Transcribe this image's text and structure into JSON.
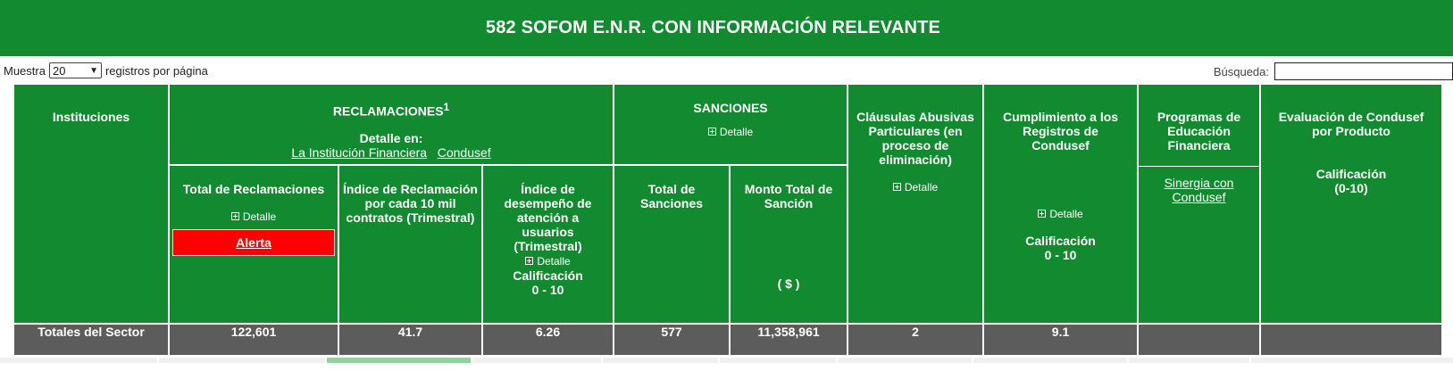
{
  "banner": {
    "title": "582 SOFOM E.N.R. CON INFORMACIÓN RELEVANTE"
  },
  "controls": {
    "show_label": "Muestra",
    "page_size": "20",
    "per_page_label": "registros por página",
    "search_label": "Búsqueda:",
    "search_value": ""
  },
  "colors": {
    "header_green": "#128a2f",
    "totals_gray": "#5c5c5c",
    "alert_red": "#ff0000"
  },
  "table": {
    "institutions_header": "Instituciones",
    "reclamaciones": {
      "title": "RECLAMACIONES",
      "footnote": "1",
      "detail_label": "Detalle en:",
      "link_institution": "La Institución Financiera",
      "link_condusef": "Condusef",
      "total_header": "Total de Reclamaciones",
      "total_detail": "Detalle",
      "alert_label": "Alerta",
      "indice_header": "Índice de Reclamación por cada 10 mil contratos (Trimestral)",
      "desempeno_header": "Índice de desempeño de atención a usuarios (Trimestral)",
      "desempeno_detail": "Detalle",
      "desempeno_calif": "Calificación",
      "desempeno_range": "0 - 10"
    },
    "sanciones": {
      "title": "SANCIONES",
      "detail": "Detalle",
      "total_header": "Total de Sanciones",
      "monto_header": "Monto Total de Sanción",
      "monto_unit": "( $ )"
    },
    "clausulas": {
      "header": "Cláusulas Abusivas Particulares (en proceso de eliminación)",
      "detail": "Detalle"
    },
    "cumplimiento": {
      "header": "Cumplimiento a los Registros de Condusef",
      "detail": "Detalle",
      "calif": "Calificación",
      "range": "0 - 10"
    },
    "programas": {
      "header": "Programas de Educación Financiera",
      "link": "Sinergia con Condusef"
    },
    "evaluacion": {
      "header": "Evaluación de Condusef por Producto",
      "calif": "Calificación",
      "range": "(0-10)"
    },
    "totals": {
      "label": "Totales del Sector",
      "total_reclamaciones": "122,601",
      "indice_reclamacion": "41.7",
      "indice_desempeno": "6.26",
      "total_sanciones": "577",
      "monto_sancion": "11,358,961",
      "clausulas": "2",
      "cumplimiento": "9.1",
      "programas": "",
      "evaluacion": ""
    }
  }
}
